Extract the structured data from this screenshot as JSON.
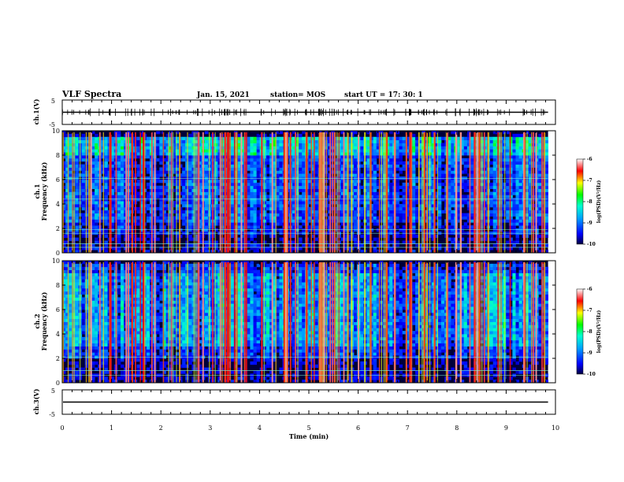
{
  "header": {
    "title": "VLF Spectra",
    "date": "Jan. 15, 2021",
    "station": "station= MOS",
    "start": "start  UT =   17: 30: 1"
  },
  "chart_data": [
    {
      "type": "line",
      "panel": "ch1-waveform",
      "ylabel": "ch.1(V)",
      "ylim": [
        -5,
        5
      ],
      "yticks": [
        "5",
        "-5"
      ],
      "xlim": [
        0,
        10
      ],
      "baseline": 0
    },
    {
      "type": "heatmap",
      "panel": "ch1-spectrogram",
      "ylabel": "ch.1\nFrequency (kHz)",
      "ylim": [
        0,
        10
      ],
      "yticks": [
        "10",
        "8",
        "6",
        "4",
        "2",
        "0"
      ],
      "xlim": [
        0,
        10
      ],
      "data_end_min": 9.85,
      "colorbar": {
        "label": "log(PSD)(V²/Hz)",
        "range": [
          -10,
          -6
        ],
        "ticks": [
          "-6",
          "-7",
          "-8",
          "-9",
          "-10"
        ]
      }
    },
    {
      "type": "heatmap",
      "panel": "ch2-spectrogram",
      "ylabel": "ch.2\nFrequency (kHz)",
      "ylim": [
        0,
        10
      ],
      "yticks": [
        "10",
        "8",
        "6",
        "4",
        "2",
        "0"
      ],
      "xlim": [
        0,
        10
      ],
      "data_end_min": 9.85,
      "colorbar": {
        "label": "log(PSD)(V²/Hz)",
        "range": [
          -10,
          -6
        ],
        "ticks": [
          "-6",
          "-7",
          "-8",
          "-9",
          "-10"
        ]
      }
    },
    {
      "type": "line",
      "panel": "ch3-waveform",
      "ylabel": "ch.3(V)",
      "ylim": [
        -5,
        5
      ],
      "yticks": [
        "5",
        "-5"
      ],
      "xlim": [
        0,
        10
      ],
      "baseline": 0
    }
  ],
  "xaxis": {
    "label": "Time (min)",
    "ticks": [
      "0",
      "1",
      "2",
      "3",
      "4",
      "5",
      "6",
      "7",
      "8",
      "9",
      "10"
    ]
  }
}
